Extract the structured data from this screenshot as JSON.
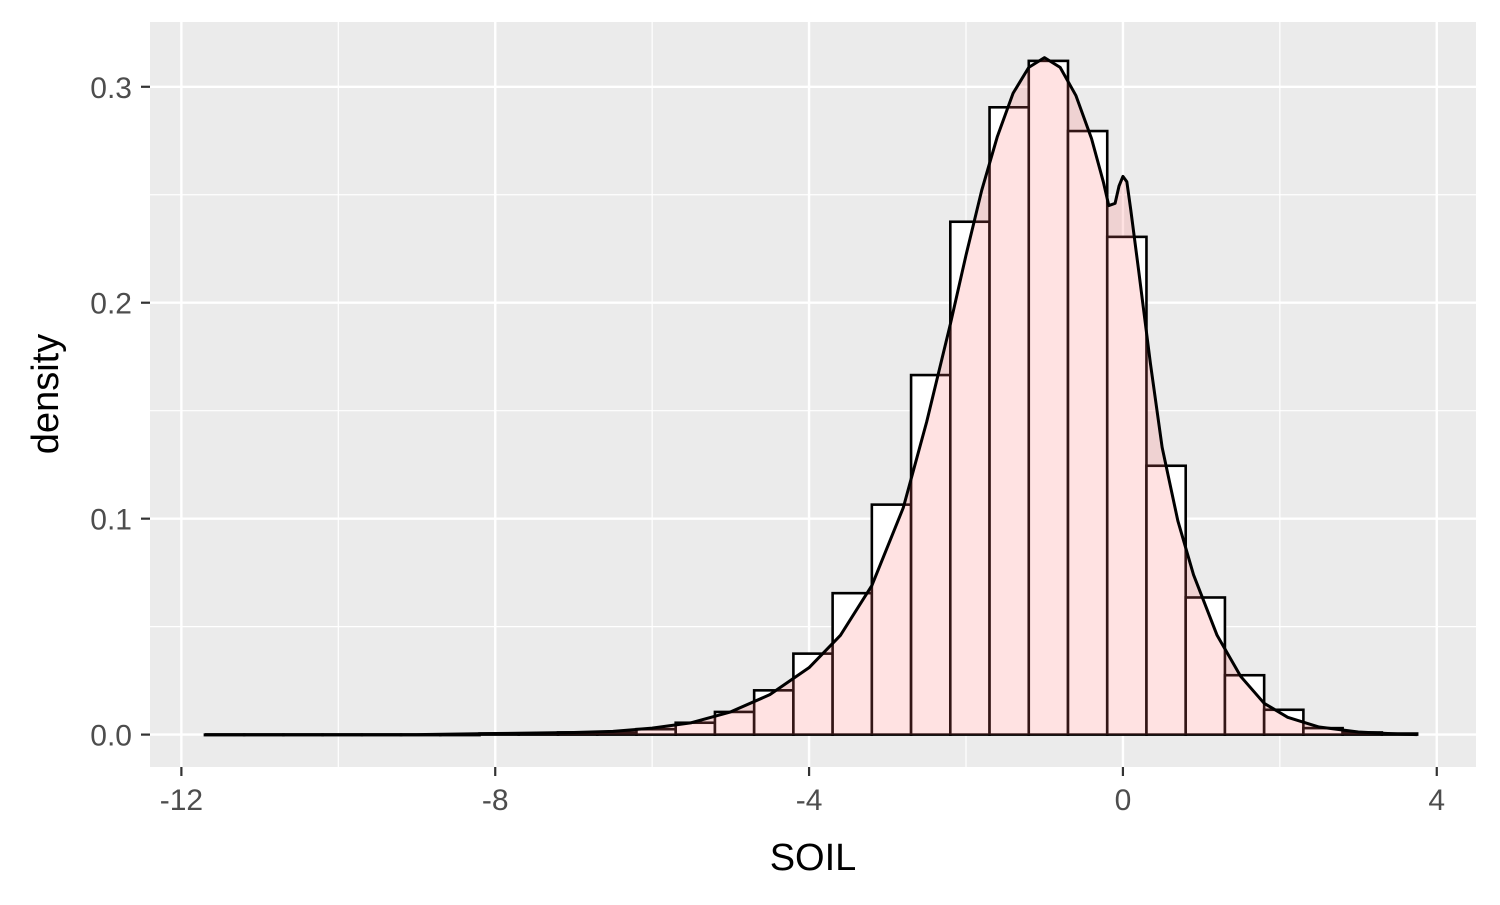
{
  "chart_data": {
    "type": "bar",
    "subtype": "histogram-with-density",
    "xlabel": "SOIL",
    "ylabel": "density",
    "xlim": [
      -12.4,
      4.5
    ],
    "ylim": [
      -0.015,
      0.33
    ],
    "x_ticks": [
      -12,
      -8,
      -4,
      0,
      4
    ],
    "x_tick_labels": [
      "-12",
      "-8",
      "-4",
      "0",
      "4"
    ],
    "y_ticks": [
      0.0,
      0.1,
      0.2,
      0.3
    ],
    "y_tick_labels": [
      "0.0",
      "0.1",
      "0.2",
      "0.3"
    ],
    "grid": true,
    "bins": [
      {
        "x0": -11.7,
        "x1": -11.2,
        "density": 0.0
      },
      {
        "x0": -11.2,
        "x1": -10.7,
        "density": 0.0
      },
      {
        "x0": -10.7,
        "x1": -10.2,
        "density": 0.0
      },
      {
        "x0": -10.2,
        "x1": -9.7,
        "density": 0.0
      },
      {
        "x0": -9.7,
        "x1": -9.2,
        "density": 0.0
      },
      {
        "x0": -9.2,
        "x1": -8.7,
        "density": 0.0
      },
      {
        "x0": -8.7,
        "x1": -8.2,
        "density": 0.0
      },
      {
        "x0": -8.2,
        "x1": -7.7,
        "density": 0.0005
      },
      {
        "x0": -7.7,
        "x1": -7.2,
        "density": 0.0005
      },
      {
        "x0": -7.2,
        "x1": -6.7,
        "density": 0.001
      },
      {
        "x0": -6.7,
        "x1": -6.2,
        "density": 0.001
      },
      {
        "x0": -6.2,
        "x1": -5.7,
        "density": 0.0025
      },
      {
        "x0": -5.7,
        "x1": -5.2,
        "density": 0.0055
      },
      {
        "x0": -5.2,
        "x1": -4.7,
        "density": 0.0105
      },
      {
        "x0": -4.7,
        "x1": -4.2,
        "density": 0.0205
      },
      {
        "x0": -4.2,
        "x1": -3.7,
        "density": 0.0375
      },
      {
        "x0": -3.7,
        "x1": -3.2,
        "density": 0.0655
      },
      {
        "x0": -3.2,
        "x1": -2.7,
        "density": 0.1065
      },
      {
        "x0": -2.7,
        "x1": -2.2,
        "density": 0.1665
      },
      {
        "x0": -2.2,
        "x1": -1.7,
        "density": 0.2375
      },
      {
        "x0": -1.7,
        "x1": -1.2,
        "density": 0.2905
      },
      {
        "x0": -1.2,
        "x1": -0.7,
        "density": 0.312
      },
      {
        "x0": -0.7,
        "x1": -0.2,
        "density": 0.2795
      },
      {
        "x0": -0.2,
        "x1": 0.3,
        "density": 0.2305
      },
      {
        "x0": 0.3,
        "x1": 0.8,
        "density": 0.1245
      },
      {
        "x0": 0.8,
        "x1": 1.3,
        "density": 0.0635
      },
      {
        "x0": 1.3,
        "x1": 1.8,
        "density": 0.0275
      },
      {
        "x0": 1.8,
        "x1": 2.3,
        "density": 0.0115
      },
      {
        "x0": 2.3,
        "x1": 2.8,
        "density": 0.003
      },
      {
        "x0": 2.8,
        "x1": 3.3,
        "density": 0.001
      },
      {
        "x0": 3.3,
        "x1": 3.75,
        "density": 0.0005
      }
    ],
    "density_curve": [
      [
        -11.7,
        0.0
      ],
      [
        -9.0,
        0.0
      ],
      [
        -8.0,
        0.0005
      ],
      [
        -7.0,
        0.001
      ],
      [
        -6.5,
        0.0015
      ],
      [
        -6.0,
        0.003
      ],
      [
        -5.5,
        0.0055
      ],
      [
        -5.0,
        0.0105
      ],
      [
        -4.5,
        0.0185
      ],
      [
        -4.0,
        0.031
      ],
      [
        -3.6,
        0.046
      ],
      [
        -3.2,
        0.069
      ],
      [
        -2.8,
        0.105
      ],
      [
        -2.5,
        0.145
      ],
      [
        -2.2,
        0.19
      ],
      [
        -2.0,
        0.222
      ],
      [
        -1.8,
        0.252
      ],
      [
        -1.6,
        0.277
      ],
      [
        -1.4,
        0.297
      ],
      [
        -1.2,
        0.309
      ],
      [
        -1.0,
        0.3135
      ],
      [
        -0.8,
        0.309
      ],
      [
        -0.6,
        0.296
      ],
      [
        -0.4,
        0.276
      ],
      [
        -0.25,
        0.256
      ],
      [
        -0.18,
        0.245
      ],
      [
        -0.1,
        0.246
      ],
      [
        -0.05,
        0.254
      ],
      [
        0.0,
        0.2585
      ],
      [
        0.05,
        0.256
      ],
      [
        0.1,
        0.243
      ],
      [
        0.2,
        0.215
      ],
      [
        0.35,
        0.172
      ],
      [
        0.5,
        0.133
      ],
      [
        0.7,
        0.099
      ],
      [
        0.9,
        0.074
      ],
      [
        1.2,
        0.046
      ],
      [
        1.5,
        0.027
      ],
      [
        1.8,
        0.0145
      ],
      [
        2.1,
        0.008
      ],
      [
        2.5,
        0.0035
      ],
      [
        3.0,
        0.0012
      ],
      [
        3.5,
        0.0003
      ],
      [
        3.75,
        0.0
      ]
    ],
    "colors": {
      "panel_background": "#ebebeb",
      "grid_line": "#ffffff",
      "bar_fill": "#ffffff",
      "bar_stroke": "#000000",
      "density_fill": "#ff6c6c",
      "density_fill_opacity": 0.2,
      "density_line": "#000000",
      "tick_label": "#4d4d4d",
      "axis_title": "#000000"
    }
  }
}
